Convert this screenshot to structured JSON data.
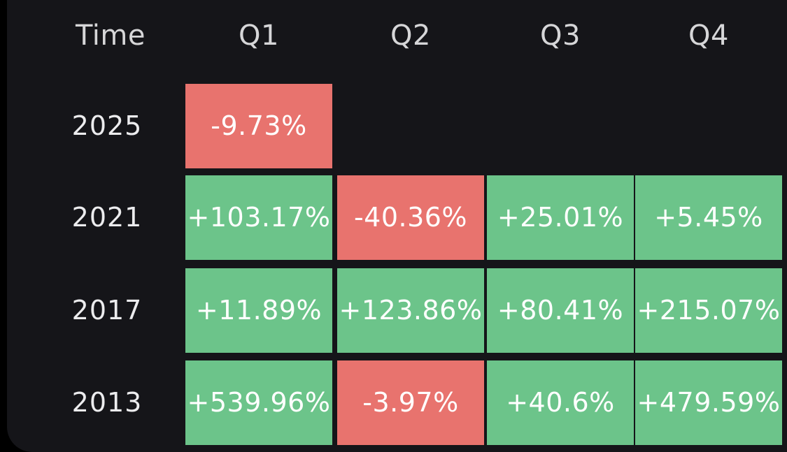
{
  "colors": {
    "background": "#151519",
    "positive": "#6cc48a",
    "negative": "#e8736e",
    "text": "#ffffff"
  },
  "table": {
    "header": {
      "time_label": "Time",
      "quarters": [
        "Q1",
        "Q2",
        "Q3",
        "Q4"
      ]
    },
    "rows": [
      {
        "year": "2025",
        "cells": [
          {
            "value": "-9.73%",
            "trend": "negative"
          },
          null,
          null,
          null
        ]
      },
      {
        "year": "2021",
        "cells": [
          {
            "value": "+103.17%",
            "trend": "positive"
          },
          {
            "value": "-40.36%",
            "trend": "negative"
          },
          {
            "value": "+25.01%",
            "trend": "positive"
          },
          {
            "value": "+5.45%",
            "trend": "positive"
          }
        ]
      },
      {
        "year": "2017",
        "cells": [
          {
            "value": "+11.89%",
            "trend": "positive"
          },
          {
            "value": "+123.86%",
            "trend": "positive"
          },
          {
            "value": "+80.41%",
            "trend": "positive"
          },
          {
            "value": "+215.07%",
            "trend": "positive"
          }
        ]
      },
      {
        "year": "2013",
        "cells": [
          {
            "value": "+539.96%",
            "trend": "positive"
          },
          {
            "value": "-3.97%",
            "trend": "negative"
          },
          {
            "value": "+40.6%",
            "trend": "positive"
          },
          {
            "value": "+479.59%",
            "trend": "positive"
          }
        ]
      }
    ]
  }
}
